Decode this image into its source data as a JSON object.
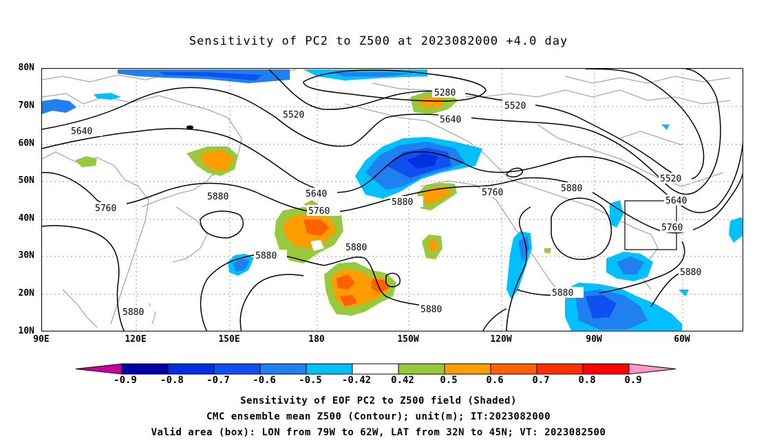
{
  "title": "Sensitivity of PC2 to Z500 at 2023082000 +4.0 day",
  "lat_labels": [
    "80N",
    "70N",
    "60N",
    "50N",
    "40N",
    "30N",
    "20N",
    "10N"
  ],
  "lon_labels": [
    "90E",
    "120E",
    "150E",
    "180",
    "150W",
    "120W",
    "90W",
    "60W"
  ],
  "contour_labels": {
    "c5280": "5280",
    "c5520a": "5520",
    "c5520b": "5520",
    "c5520c": "5520",
    "c5640a": "5640",
    "c5640b": "5640",
    "c5640c": "5640",
    "c5640d": "5640",
    "c5760a": "5760",
    "c5760b": "5760",
    "c5760c": "5760",
    "c5760d": "5760",
    "c5880a": "5880",
    "c5880b": "5880",
    "c5880c": "5880",
    "c5880d": "5880",
    "c5880e": "5880",
    "c5880f": "5880",
    "c5880g": "5880",
    "c5880h": "5880",
    "c5880i": "5880"
  },
  "colorbar": {
    "labels": [
      "-0.9",
      "-0.8",
      "-0.7",
      "-0.6",
      "-0.5",
      "-0.42",
      "0.42",
      "0.5",
      "0.6",
      "0.7",
      "0.8",
      "0.9"
    ],
    "colors": [
      "#c8009e",
      "#0000a8",
      "#0030e0",
      "#1050f0",
      "#2080f0",
      "#00c0ff",
      "#ffffff",
      "#98c83c",
      "#ff9c00",
      "#ff6000",
      "#ff3000",
      "#ff0000",
      "#ff98c8"
    ]
  },
  "footer": {
    "line1": "Sensitivity of EOF PC2 to Z500 field (Shaded)",
    "line2": "CMC ensemble mean Z500 (Contour); unit(m); IT:2023082000",
    "line3": "Valid area (box): LON from 79W to 62W, LAT from 32N to 45N; VT: 2023082500"
  }
}
